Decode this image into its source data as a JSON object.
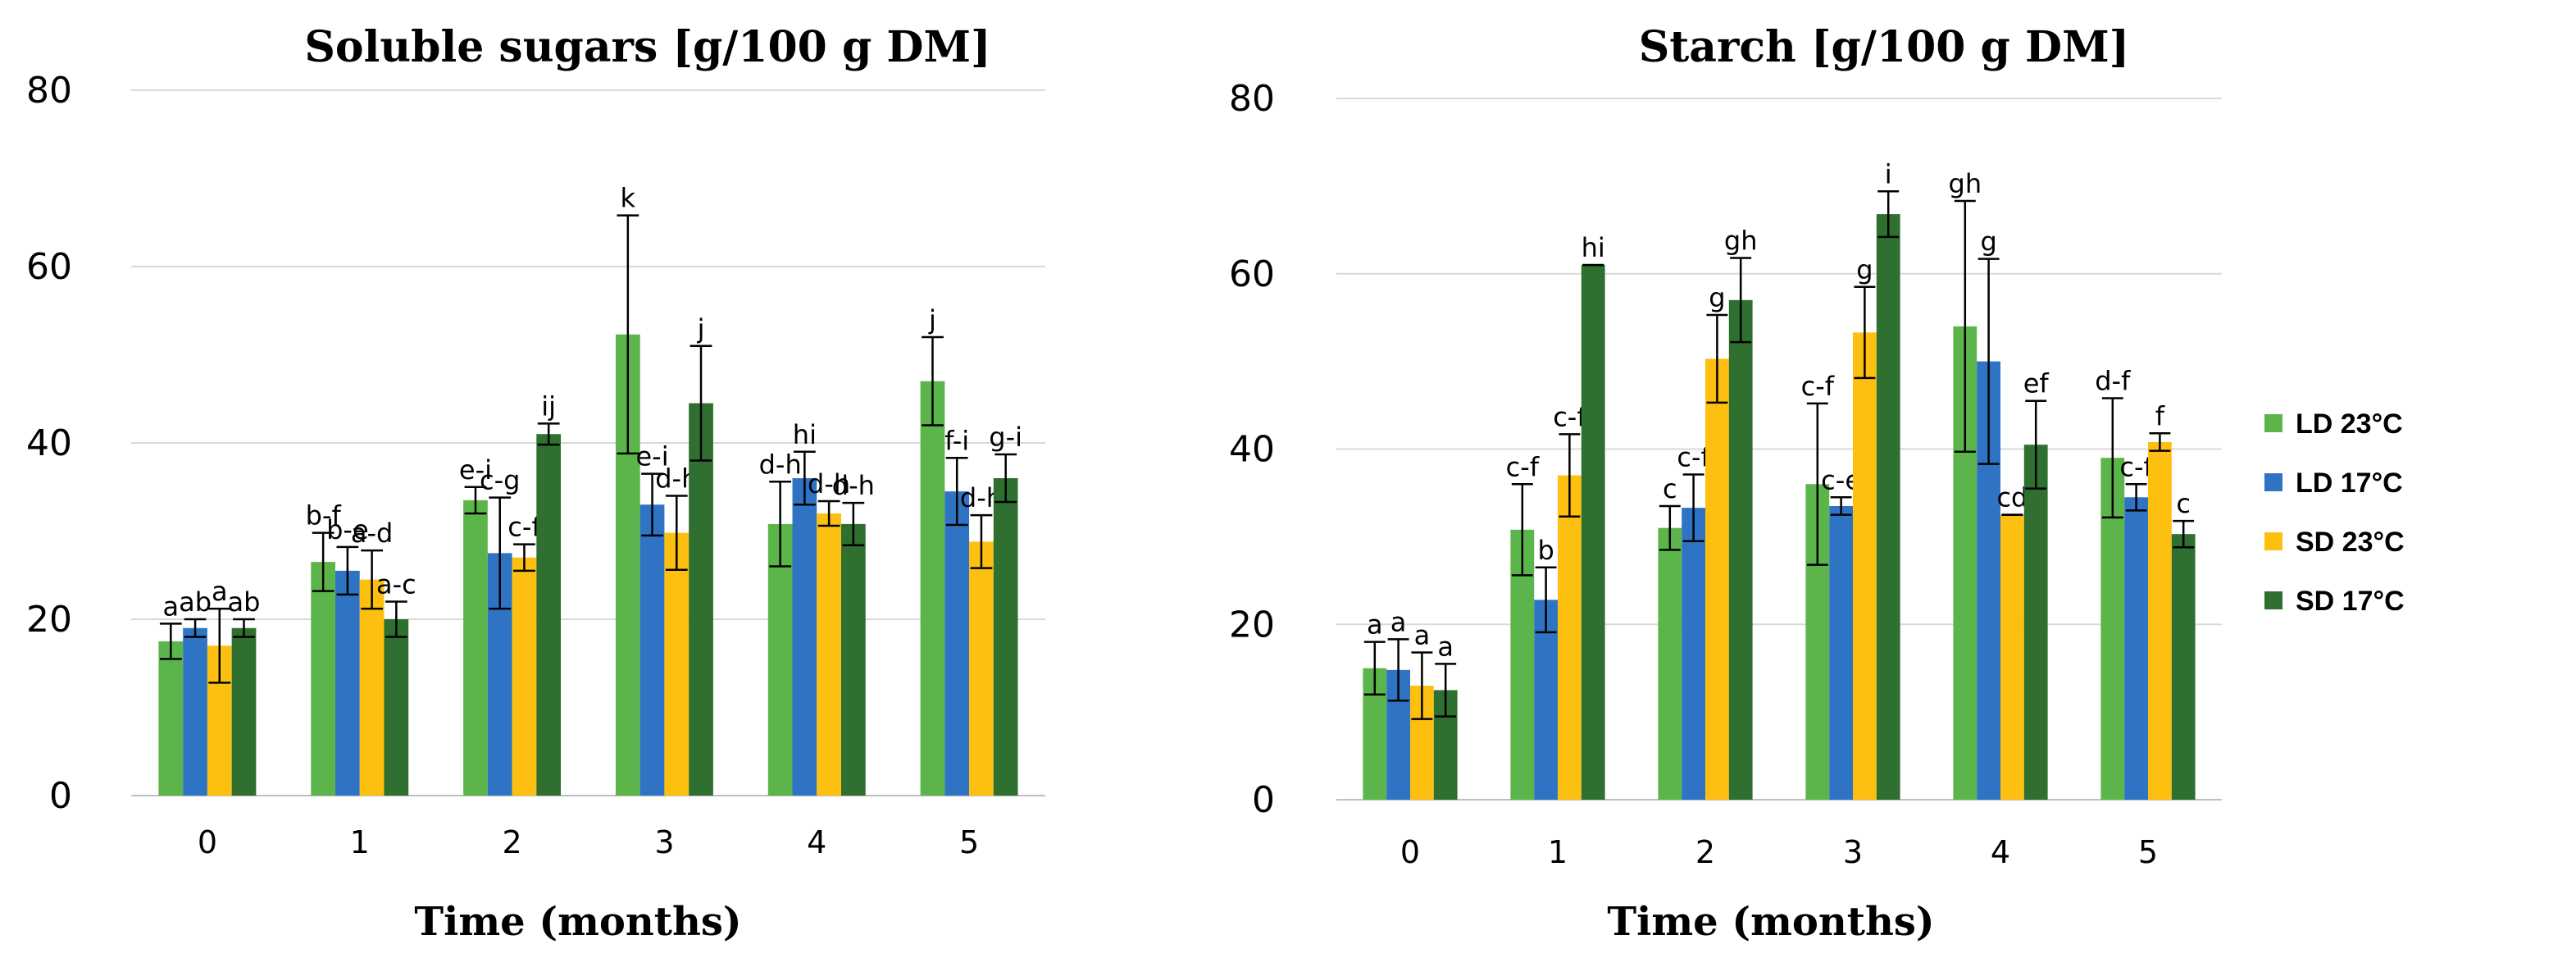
{
  "colors": {
    "LD 23°C": "#5cb54a",
    "LD 17°C": "#2f74c4",
    "SD 23°C": "#fdc010",
    "SD 17°C": "#2f6f2f"
  },
  "legend": [
    "LD 23°C",
    "LD 17°C",
    "SD 23°C",
    "SD 17°C"
  ],
  "chart_data": [
    {
      "type": "bar",
      "title": "Soluble sugars [g/100 g DM]",
      "xlabel": "Time (months)",
      "ylabel": "",
      "ylim": [
        0,
        80
      ],
      "yticks": [
        "0",
        "20",
        "40",
        "60",
        "80"
      ],
      "categories": [
        "0",
        "1",
        "2",
        "3",
        "4",
        "5"
      ],
      "series": [
        {
          "name": "LD 23°C",
          "values": [
            17.5,
            26.5,
            33.5,
            52.3,
            30.8,
            47.0
          ],
          "errors": [
            2.0,
            3.3,
            1.5,
            13.5,
            4.8,
            5.0
          ],
          "labels": [
            "a",
            "b-f",
            "e-i",
            "k",
            "d-h",
            "j"
          ]
        },
        {
          "name": "LD 17°C",
          "values": [
            19.0,
            25.5,
            27.5,
            33.0,
            36.0,
            34.5
          ],
          "errors": [
            1.0,
            2.7,
            6.3,
            3.5,
            3.0,
            3.8
          ],
          "labels": [
            "ab",
            "b-e",
            "c-g",
            "e-i",
            "hi",
            "f-i"
          ]
        },
        {
          "name": "SD 23°C",
          "values": [
            17.0,
            24.5,
            27.0,
            29.8,
            32.0,
            28.8
          ],
          "errors": [
            4.2,
            3.3,
            1.5,
            4.2,
            1.4,
            3.0
          ],
          "labels": [
            "a",
            "a-d",
            "c-f",
            "d-h",
            "d-h",
            "d-h"
          ]
        },
        {
          "name": "SD 17°C",
          "values": [
            19.0,
            20.0,
            41.0,
            44.5,
            30.8,
            36.0
          ],
          "errors": [
            1.0,
            2.0,
            1.2,
            6.5,
            2.4,
            2.7
          ],
          "labels": [
            "ab",
            "a-c",
            "ij",
            "j",
            "d-h",
            "g-i"
          ]
        }
      ]
    },
    {
      "type": "bar",
      "title": "Starch [g/100 g DM]",
      "xlabel": "Time (months)",
      "ylabel": "",
      "ylim": [
        0,
        80
      ],
      "yticks": [
        "0",
        "20",
        "40",
        "60",
        "80"
      ],
      "categories": [
        "0",
        "1",
        "2",
        "3",
        "4",
        "5"
      ],
      "series": [
        {
          "name": "LD 23°C",
          "values": [
            15.0,
            30.8,
            31.0,
            36.0,
            54.0,
            39.0
          ],
          "errors": [
            3.0,
            5.2,
            2.5,
            9.2,
            14.3,
            6.8
          ],
          "labels": [
            "a",
            "c-f",
            "c",
            "c-f",
            "gh",
            "d-f"
          ]
        },
        {
          "name": "LD 17°C",
          "values": [
            14.8,
            22.8,
            33.3,
            33.5,
            50.0,
            34.5
          ],
          "errors": [
            3.5,
            3.7,
            3.8,
            1.0,
            11.7,
            1.5
          ],
          "labels": [
            "a",
            "b",
            "c-f",
            "c-e",
            "g",
            "c-f"
          ]
        },
        {
          "name": "SD 23°C",
          "values": [
            13.0,
            37.0,
            50.3,
            53.3,
            32.5,
            40.8
          ],
          "errors": [
            3.8,
            4.7,
            5.0,
            5.2,
            0,
            1.0
          ],
          "labels": [
            "a",
            "c-f",
            "g",
            "g",
            "cd",
            "f"
          ]
        },
        {
          "name": "SD 17°C",
          "values": [
            12.5,
            61.0,
            57.0,
            66.8,
            40.5,
            30.3
          ],
          "errors": [
            3.0,
            0,
            4.8,
            2.6,
            5.0,
            1.5
          ],
          "labels": [
            "a",
            "hi",
            "gh",
            "i",
            "ef",
            "c"
          ]
        }
      ]
    }
  ]
}
